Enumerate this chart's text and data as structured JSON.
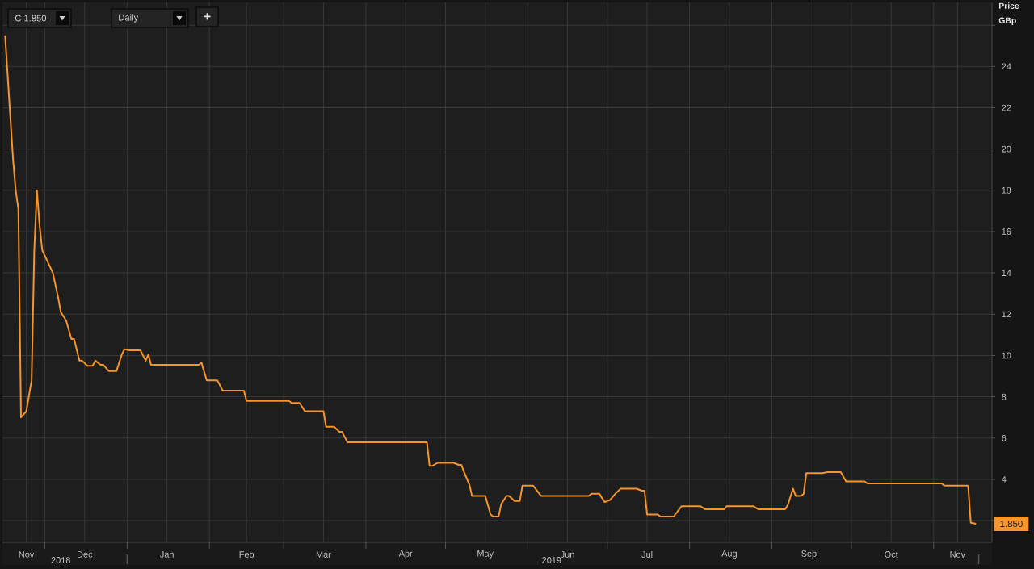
{
  "chart_data": {
    "type": "line",
    "ylabel": "Price GBp",
    "annotations": [
      "C 1.850",
      "Daily",
      "+",
      {
        "text": "1.850",
        "x": "2019-11-17",
        "y": 1.85
      }
    ],
    "x": [
      "2018-11-16",
      "2018-11-19",
      "2018-11-20",
      "2018-11-21",
      "2018-11-22",
      "2018-11-24",
      "2018-11-26",
      "2018-11-27",
      "2018-11-28",
      "2018-11-29",
      "2018-11-30",
      "2018-12-04",
      "2018-12-06",
      "2018-12-07",
      "2018-12-09",
      "2018-12-11",
      "2018-12-12",
      "2018-12-14",
      "2018-12-15",
      "2018-12-17",
      "2018-12-19",
      "2018-12-20",
      "2018-12-22",
      "2018-12-23",
      "2018-12-25",
      "2018-12-28",
      "2018-12-30",
      "2018-12-31",
      "2019-01-02",
      "2019-01-06",
      "2019-01-08",
      "2019-01-09",
      "2019-01-10",
      "2019-01-28",
      "2019-01-29",
      "2019-01-31",
      "2019-02-04",
      "2019-02-06",
      "2019-02-14",
      "2019-02-15",
      "2019-03-03",
      "2019-03-04",
      "2019-03-07",
      "2019-03-09",
      "2019-03-16",
      "2019-03-17",
      "2019-03-20",
      "2019-03-22",
      "2019-03-23",
      "2019-03-25",
      "2019-04-24",
      "2019-04-25",
      "2019-04-26",
      "2019-04-28",
      "2019-05-04",
      "2019-05-06",
      "2019-05-07",
      "2019-05-08",
      "2019-05-10",
      "2019-05-11",
      "2019-05-16",
      "2019-05-18",
      "2019-05-19",
      "2019-05-21",
      "2019-05-22",
      "2019-05-24",
      "2019-05-25",
      "2019-05-27",
      "2019-05-29",
      "2019-05-30",
      "2019-06-03",
      "2019-06-06",
      "2019-06-24",
      "2019-06-25",
      "2019-06-28",
      "2019-06-30",
      "2019-07-02",
      "2019-07-04",
      "2019-07-06",
      "2019-07-07",
      "2019-07-12",
      "2019-07-14",
      "2019-07-15",
      "2019-07-16",
      "2019-07-20",
      "2019-07-21",
      "2019-07-26",
      "2019-07-29",
      "2019-08-05",
      "2019-08-07",
      "2019-08-14",
      "2019-08-15",
      "2019-08-25",
      "2019-08-27",
      "2019-09-06",
      "2019-09-07",
      "2019-09-09",
      "2019-09-10",
      "2019-09-12",
      "2019-09-13",
      "2019-09-14",
      "2019-09-20",
      "2019-09-22",
      "2019-09-27",
      "2019-09-29",
      "2019-10-06",
      "2019-10-07",
      "2019-11-04",
      "2019-11-05",
      "2019-11-14",
      "2019-11-15",
      "2019-11-17"
    ],
    "values": [
      25.5,
      19.5,
      18.0,
      17.1,
      7.0,
      7.3,
      8.8,
      15.1,
      18.0,
      16.3,
      15.1,
      14.0,
      12.8,
      12.1,
      11.7,
      10.8,
      10.8,
      9.75,
      9.75,
      9.5,
      9.5,
      9.75,
      9.55,
      9.55,
      9.25,
      9.25,
      10.05,
      10.3,
      10.25,
      10.25,
      9.75,
      10.05,
      9.55,
      9.55,
      9.65,
      8.8,
      8.8,
      8.3,
      8.3,
      7.8,
      7.8,
      7.7,
      7.7,
      7.3,
      7.3,
      6.55,
      6.55,
      6.3,
      6.3,
      5.8,
      5.8,
      4.65,
      4.65,
      4.8,
      4.8,
      4.7,
      4.7,
      4.35,
      3.75,
      3.2,
      3.2,
      2.3,
      2.2,
      2.2,
      2.8,
      3.2,
      3.2,
      2.95,
      2.95,
      3.7,
      3.7,
      3.2,
      3.2,
      3.3,
      3.3,
      2.9,
      3.0,
      3.3,
      3.55,
      3.55,
      3.55,
      3.45,
      3.45,
      2.3,
      2.3,
      2.2,
      2.2,
      2.7,
      2.7,
      2.55,
      2.55,
      2.7,
      2.7,
      2.55,
      2.55,
      2.75,
      3.55,
      3.2,
      3.2,
      3.3,
      4.3,
      4.3,
      4.35,
      4.35,
      3.9,
      3.9,
      3.8,
      3.8,
      3.7,
      3.7,
      1.9,
      1.85
    ],
    "color": "#f7942a",
    "xlim": [
      "2018-11-15",
      "2019-11-23"
    ],
    "xticks": [
      {
        "value": "2018-11-24",
        "label": "Nov"
      },
      {
        "value": "2018-12-01",
        "label": null
      },
      {
        "value": "2018-12-16",
        "label": "Dec"
      },
      {
        "value": "2019-01-01",
        "label": null
      },
      {
        "value": "2019-01-16",
        "label": "Jan"
      },
      {
        "value": "2019-02-01",
        "label": null
      },
      {
        "value": "2019-02-15",
        "label": "Feb"
      },
      {
        "value": "2019-03-01",
        "label": null
      },
      {
        "value": "2019-03-16",
        "label": "Mar"
      },
      {
        "value": "2019-04-01",
        "label": null
      },
      {
        "value": "2019-04-16",
        "label": "Apr"
      },
      {
        "value": "2019-05-01",
        "label": null
      },
      {
        "value": "2019-05-16",
        "label": "May"
      },
      {
        "value": "2019-06-01",
        "label": null
      },
      {
        "value": "2019-06-16",
        "label": "Jun"
      },
      {
        "value": "2019-07-01",
        "label": null
      },
      {
        "value": "2019-07-16",
        "label": "Jul"
      },
      {
        "value": "2019-08-01",
        "label": null
      },
      {
        "value": "2019-08-16",
        "label": "Aug"
      },
      {
        "value": "2019-09-01",
        "label": null
      },
      {
        "value": "2019-09-15",
        "label": "Sep"
      },
      {
        "value": "2019-10-01",
        "label": null
      },
      {
        "value": "2019-10-16",
        "label": "Oct"
      },
      {
        "value": "2019-11-01",
        "label": null
      },
      {
        "value": "2019-11-10",
        "label": "Nov"
      }
    ],
    "x2lim": [
      "2018-11-15",
      "2019-11-23"
    ],
    "x2ticks": [
      {
        "value": "2018-12-07",
        "label": "2018"
      },
      {
        "value": "2019-01-01",
        "label": null
      },
      {
        "value": "2019-06-10",
        "label": "2019"
      },
      {
        "value": "2019-11-18",
        "label": null
      }
    ],
    "ylim": [
      0.95,
      27.1
    ],
    "yticks": [
      {
        "value": 2,
        "label": null
      },
      4,
      6,
      8,
      10,
      12,
      14,
      16,
      18,
      20,
      22,
      24,
      {
        "value": 26,
        "label": null
      }
    ],
    "grid": true
  }
}
